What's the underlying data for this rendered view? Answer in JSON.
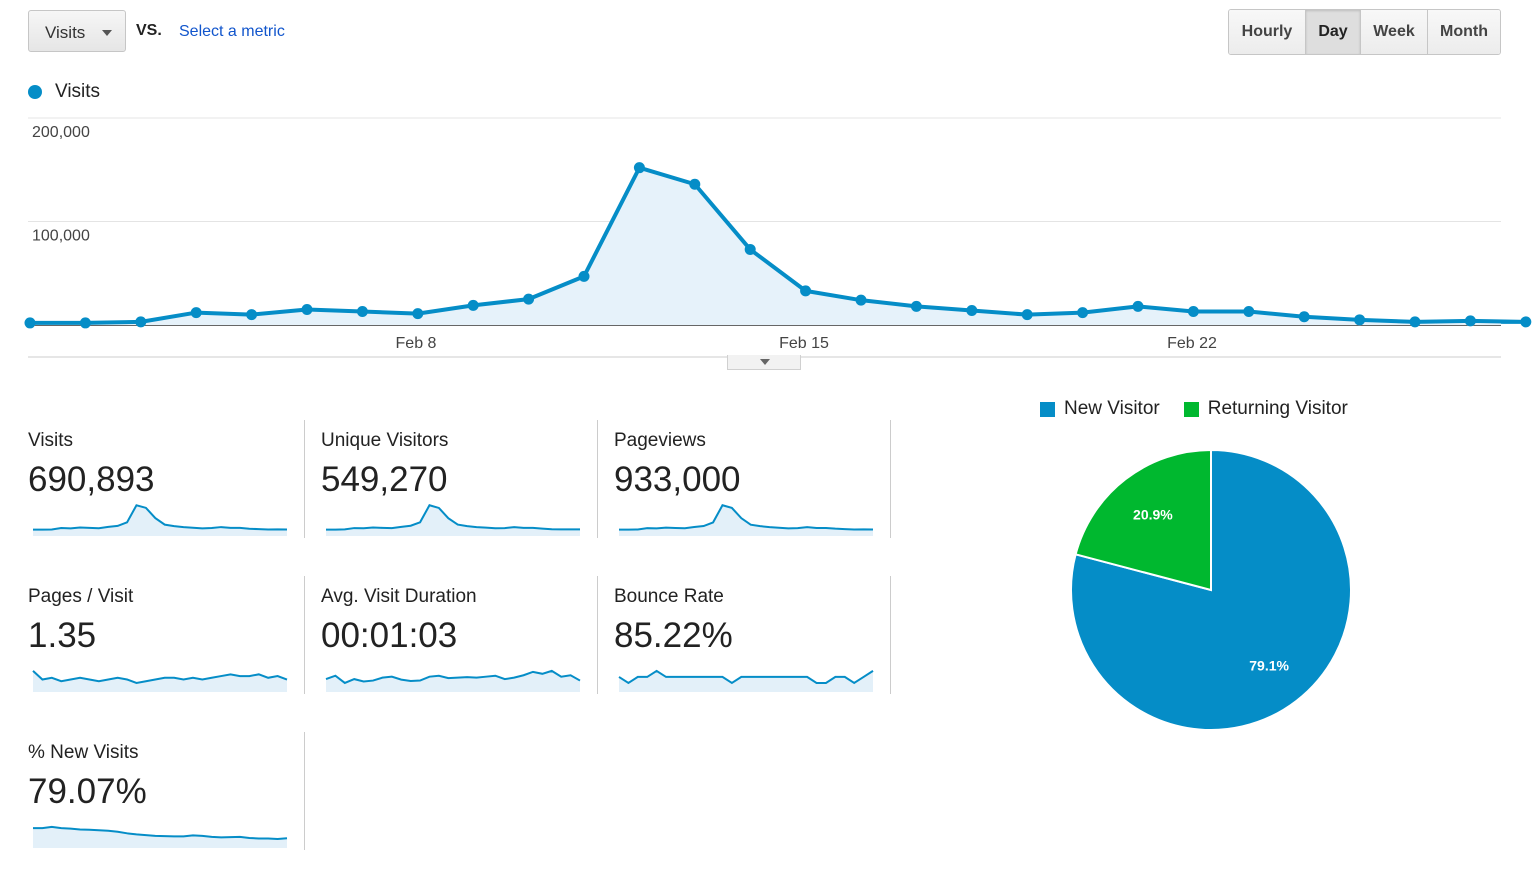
{
  "header": {
    "metric_select_label": "Visits",
    "vs_label": "VS.",
    "select_metric_link": "Select a metric",
    "granularity": [
      {
        "label": "Hourly",
        "active": false
      },
      {
        "label": "Day",
        "active": true
      },
      {
        "label": "Week",
        "active": false
      },
      {
        "label": "Month",
        "active": false
      }
    ]
  },
  "chart_legend": {
    "label": "Visits",
    "color": "#058dc7"
  },
  "chart_data": {
    "type": "area",
    "title": "",
    "series": [
      {
        "name": "Visits",
        "values": [
          2000,
          2000,
          3000,
          12000,
          10000,
          15000,
          13000,
          11000,
          19000,
          25000,
          47000,
          152000,
          136000,
          73000,
          33000,
          24000,
          18000,
          14000,
          10000,
          12000,
          18000,
          13000,
          13000,
          8000,
          5000,
          3000,
          4000,
          3000
        ]
      }
    ],
    "x_tick_labels": [
      "Feb 8",
      "Feb 15",
      "Feb 22"
    ],
    "y_tick_labels": [
      "200,000",
      "100,000"
    ],
    "ylim": [
      0,
      200000
    ],
    "grid": true,
    "color": "#058dc7"
  },
  "scorecards": [
    {
      "title": "Visits",
      "value": "690,893",
      "spark": [
        2,
        2,
        3,
        12,
        10,
        15,
        13,
        11,
        19,
        25,
        47,
        152,
        136,
        73,
        33,
        24,
        18,
        14,
        10,
        12,
        18,
        13,
        13,
        8,
        5,
        3,
        4,
        3
      ]
    },
    {
      "title": "Unique Visitors",
      "value": "549,270",
      "spark": [
        2,
        2,
        3,
        10,
        9,
        13,
        11,
        10,
        16,
        22,
        40,
        128,
        114,
        61,
        28,
        20,
        15,
        12,
        9,
        10,
        15,
        11,
        11,
        7,
        4,
        3,
        3,
        3
      ]
    },
    {
      "title": "Pageviews",
      "value": "933,000",
      "spark": [
        3,
        3,
        4,
        15,
        13,
        20,
        17,
        15,
        25,
        33,
        63,
        205,
        183,
        98,
        44,
        32,
        24,
        19,
        13,
        16,
        24,
        17,
        17,
        11,
        7,
        4,
        5,
        4
      ]
    },
    {
      "title": "Pages / Visit",
      "value": "1.35",
      "spark": [
        1.38,
        1.33,
        1.34,
        1.32,
        1.33,
        1.34,
        1.33,
        1.32,
        1.33,
        1.34,
        1.33,
        1.31,
        1.32,
        1.33,
        1.34,
        1.34,
        1.33,
        1.34,
        1.33,
        1.34,
        1.35,
        1.36,
        1.35,
        1.35,
        1.36,
        1.34,
        1.35,
        1.33
      ]
    },
    {
      "title": "Avg. Visit Duration",
      "value": "00:01:03",
      "spark": [
        55,
        62,
        47,
        55,
        50,
        52,
        58,
        60,
        54,
        51,
        52,
        60,
        62,
        57,
        58,
        59,
        58,
        60,
        62,
        55,
        58,
        63,
        70,
        66,
        72,
        60,
        63,
        52
      ]
    },
    {
      "title": "Bounce Rate",
      "value": "85.22%",
      "spark": [
        85.9,
        85.8,
        85.9,
        85.9,
        86.0,
        85.9,
        85.9,
        85.9,
        85.9,
        85.9,
        85.9,
        85.9,
        85.8,
        85.9,
        85.9,
        85.9,
        85.9,
        85.9,
        85.9,
        85.9,
        85.9,
        85.8,
        85.8,
        85.9,
        85.9,
        85.8,
        85.9,
        86.0
      ]
    },
    {
      "title": "% New Visits",
      "value": "79.07%",
      "spark": [
        82,
        82,
        82.5,
        82,
        81.8,
        81.5,
        81.4,
        81.2,
        81,
        80.6,
        80,
        79.6,
        79.3,
        79,
        78.9,
        78.8,
        78.8,
        79.2,
        79,
        78.6,
        78.4,
        78.5,
        78.6,
        78.2,
        78,
        78,
        77.8,
        78.1
      ]
    }
  ],
  "pie": {
    "legend": [
      {
        "label": "New Visitor",
        "color": "#058dc7"
      },
      {
        "label": "Returning Visitor",
        "color": "#00b82f"
      }
    ],
    "slices": [
      {
        "label": "New Visitor",
        "value": 79.1,
        "display": "79.1%",
        "color": "#058dc7"
      },
      {
        "label": "Returning Visitor",
        "value": 20.9,
        "display": "20.9%",
        "color": "#00b82f"
      }
    ]
  }
}
